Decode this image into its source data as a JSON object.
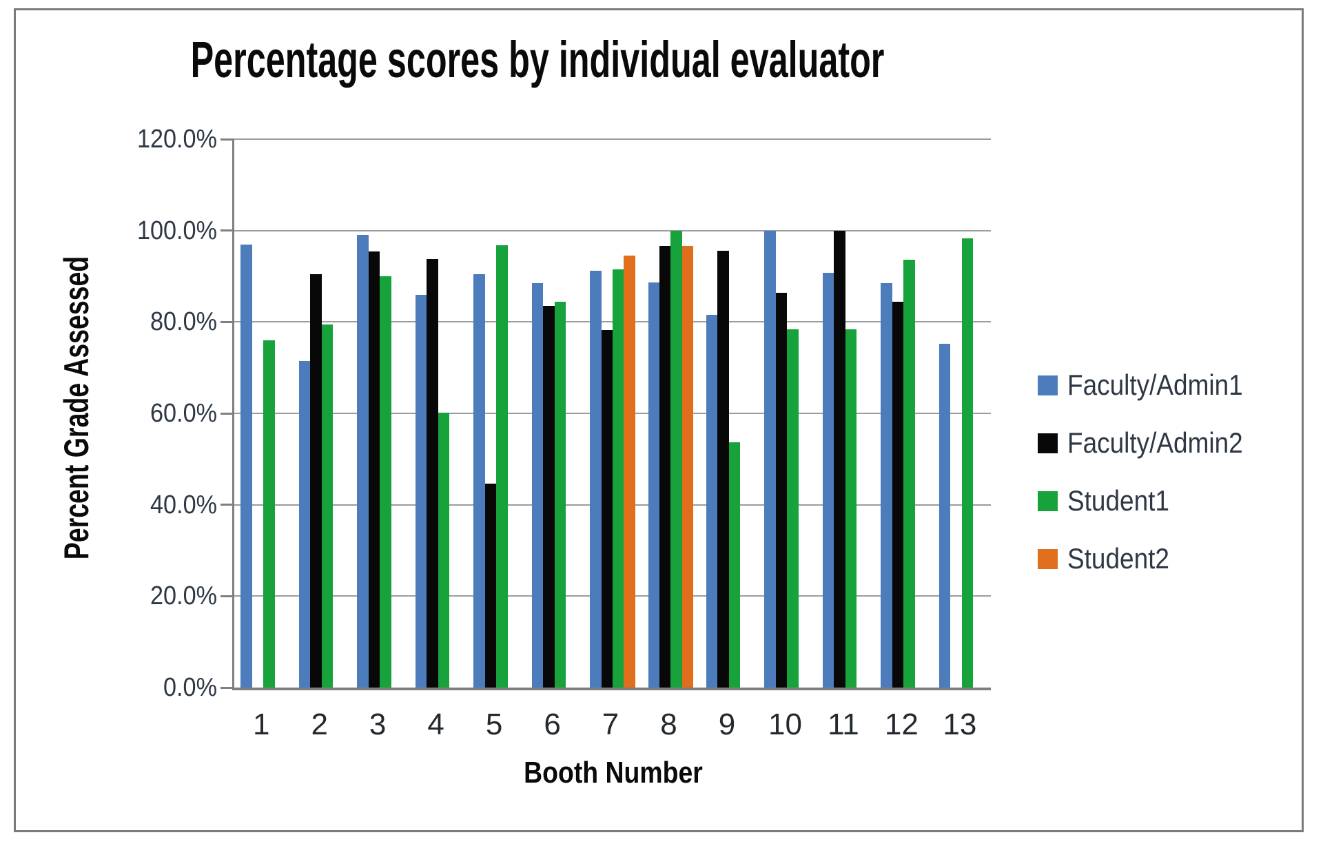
{
  "title": "Percentage scores by individual evaluator",
  "chart_data": {
    "type": "bar",
    "title": "Percentage scores by individual evaluator",
    "xlabel": "Booth Number",
    "ylabel": "Percent Grade Assessed",
    "ylim": [
      0,
      120
    ],
    "ytick_step": 20,
    "ytick_labels": [
      "0.0%",
      "20.0%",
      "40.0%",
      "60.0%",
      "80.0%",
      "100.0%",
      "120.0%"
    ],
    "grid": true,
    "legend_position": "right",
    "categories": [
      "1",
      "2",
      "3",
      "4",
      "5",
      "6",
      "7",
      "8",
      "9",
      "10",
      "11",
      "12",
      "13"
    ],
    "series": [
      {
        "name": "Faculty/Admin1",
        "color": "#4c7cbc",
        "values": [
          97.0,
          71.5,
          99.0,
          86.0,
          90.5,
          88.5,
          91.2,
          88.7,
          81.5,
          100.0,
          90.7,
          88.5,
          75.2
        ]
      },
      {
        "name": "Faculty/Admin2",
        "color": "#080808",
        "values": [
          null,
          90.5,
          95.5,
          93.8,
          44.6,
          83.5,
          78.3,
          96.7,
          95.6,
          86.4,
          100.0,
          84.4,
          null
        ]
      },
      {
        "name": "Student1",
        "color": "#17a23c",
        "values": [
          76.0,
          79.5,
          90.0,
          60.2,
          96.8,
          84.4,
          91.5,
          100.0,
          53.6,
          78.4,
          78.4,
          93.6,
          98.3
        ]
      },
      {
        "name": "Student2",
        "color": "#e06e1c",
        "values": [
          null,
          null,
          null,
          null,
          null,
          null,
          94.5,
          96.7,
          null,
          null,
          null,
          null,
          null
        ]
      }
    ]
  }
}
